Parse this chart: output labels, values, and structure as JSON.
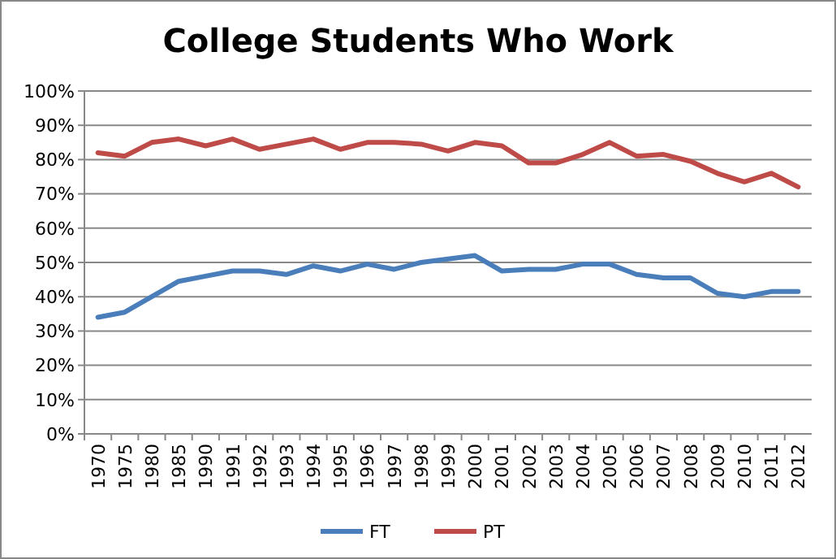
{
  "chart_data": {
    "type": "line",
    "title": "College Students Who Work",
    "categories": [
      "1970",
      "1975",
      "1980",
      "1985",
      "1990",
      "1991",
      "1992",
      "1993",
      "1994",
      "1995",
      "1996",
      "1997",
      "1998",
      "1999",
      "2000",
      "2001",
      "2002",
      "2003",
      "2004",
      "2005",
      "2006",
      "2007",
      "2008",
      "2009",
      "2010",
      "2011",
      "2012"
    ],
    "series": [
      {
        "name": "FT",
        "color": "#4a7ebb",
        "values": [
          34,
          35.5,
          40,
          44.5,
          46,
          47.5,
          47.5,
          46.5,
          49,
          47.5,
          49.5,
          48,
          50,
          51,
          52,
          47.5,
          48,
          48,
          49.5,
          49.5,
          46.5,
          45.5,
          45.5,
          41,
          40,
          41.5,
          41.5
        ]
      },
      {
        "name": "PT",
        "color": "#be4b48",
        "values": [
          82,
          81,
          85,
          86,
          84,
          86,
          83,
          84.5,
          86,
          83,
          85,
          85,
          84.5,
          82.5,
          85,
          84,
          79,
          79,
          81.5,
          85,
          81,
          81.5,
          79.5,
          76,
          73.5,
          76,
          72
        ]
      }
    ],
    "ylim": [
      0,
      100
    ],
    "yticks": [
      {
        "value": 0,
        "label": "0%"
      },
      {
        "value": 10,
        "label": "10%"
      },
      {
        "value": 20,
        "label": "20%"
      },
      {
        "value": 30,
        "label": "30%"
      },
      {
        "value": 40,
        "label": "40%"
      },
      {
        "value": 50,
        "label": "50%"
      },
      {
        "value": 60,
        "label": "60%"
      },
      {
        "value": 70,
        "label": "70%"
      },
      {
        "value": 80,
        "label": "80%"
      },
      {
        "value": 90,
        "label": "90%"
      },
      {
        "value": 100,
        "label": "100%"
      }
    ],
    "grid": "y",
    "legend": "bottom",
    "marker": "none",
    "line_style": "solid"
  }
}
